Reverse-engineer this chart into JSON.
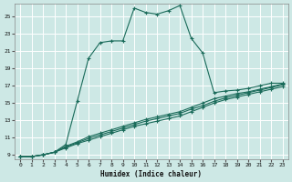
{
  "xlabel": "Humidex (Indice chaleur)",
  "bg_color": "#cde8e5",
  "line_color": "#1a6b5a",
  "grid_color": "#ffffff",
  "xlim": [
    -0.5,
    23.5
  ],
  "ylim": [
    8.5,
    26.5
  ],
  "yticks": [
    9,
    11,
    13,
    15,
    17,
    19,
    21,
    23,
    25
  ],
  "xticks": [
    0,
    1,
    2,
    3,
    4,
    5,
    6,
    7,
    8,
    9,
    10,
    11,
    12,
    13,
    14,
    15,
    16,
    17,
    18,
    19,
    20,
    21,
    22,
    23
  ],
  "curve1_x": [
    0,
    1,
    2,
    3,
    4,
    5,
    6,
    7,
    8,
    9,
    10,
    11,
    12,
    13,
    14,
    15,
    16,
    17,
    18,
    19,
    20,
    21,
    22,
    23
  ],
  "curve1_y": [
    8.8,
    8.8,
    9.0,
    9.3,
    10.2,
    15.2,
    20.2,
    22.0,
    22.2,
    22.2,
    26.0,
    25.5,
    25.3,
    25.7,
    26.3,
    22.5,
    20.8,
    16.2,
    16.4,
    16.5,
    16.7,
    17.0,
    17.3,
    17.3
  ],
  "curve2_x": [
    0,
    1,
    2,
    3,
    4,
    5,
    6,
    7,
    8,
    9,
    10,
    11,
    12,
    13,
    14,
    15,
    16,
    17,
    18,
    19,
    20,
    21,
    22,
    23
  ],
  "curve2_y": [
    8.8,
    8.8,
    9.0,
    9.3,
    9.8,
    10.3,
    10.7,
    11.1,
    11.5,
    11.9,
    12.3,
    12.6,
    12.9,
    13.2,
    13.5,
    14.0,
    14.5,
    15.0,
    15.4,
    15.7,
    16.0,
    16.3,
    16.6,
    16.9
  ],
  "curve3_x": [
    0,
    1,
    2,
    3,
    4,
    5,
    6,
    7,
    8,
    9,
    10,
    11,
    12,
    13,
    14,
    15,
    16,
    17,
    18,
    19,
    20,
    21,
    22,
    23
  ],
  "curve3_y": [
    8.8,
    8.8,
    9.0,
    9.3,
    9.9,
    10.4,
    10.9,
    11.3,
    11.7,
    12.1,
    12.5,
    12.9,
    13.2,
    13.5,
    13.8,
    14.3,
    14.7,
    15.2,
    15.6,
    15.9,
    16.2,
    16.5,
    16.8,
    17.1
  ],
  "curve4_x": [
    0,
    1,
    2,
    3,
    4,
    5,
    6,
    7,
    8,
    9,
    10,
    11,
    12,
    13,
    14,
    15,
    16,
    17,
    18,
    19,
    20,
    21,
    22,
    23
  ],
  "curve4_y": [
    8.8,
    8.8,
    9.0,
    9.3,
    10.0,
    10.5,
    11.1,
    11.5,
    11.9,
    12.3,
    12.7,
    13.1,
    13.4,
    13.7,
    14.0,
    14.5,
    15.0,
    15.5,
    15.8,
    16.1,
    16.3,
    16.6,
    16.9,
    17.2
  ]
}
